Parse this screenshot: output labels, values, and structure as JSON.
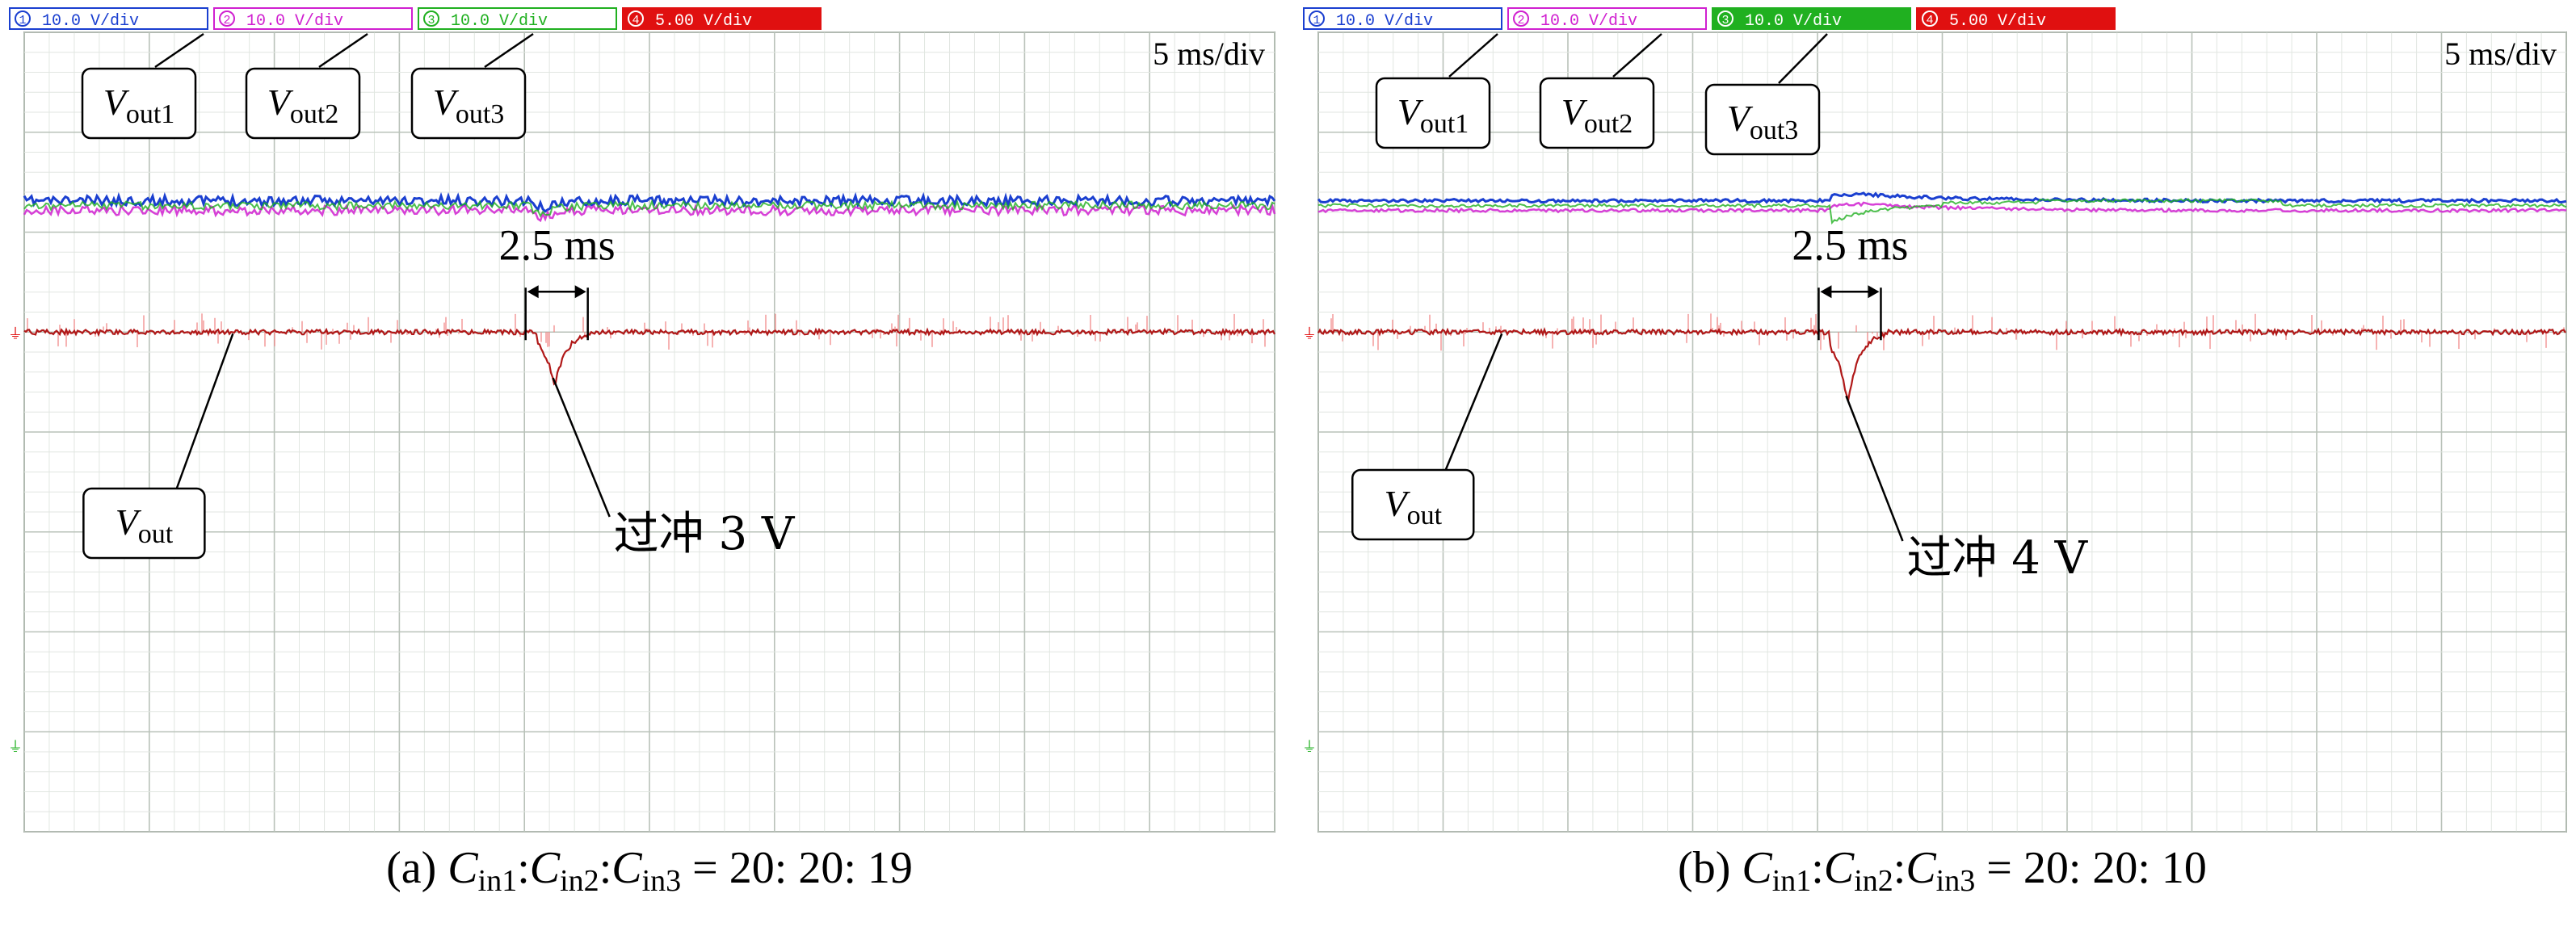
{
  "panels": [
    {
      "id": "a",
      "channels": [
        {
          "num": "1",
          "setting": "10.0 V/div",
          "color": "#1a3fd0"
        },
        {
          "num": "2",
          "setting": "10.0 V/div",
          "color": "#d020d0"
        },
        {
          "num": "3",
          "setting": "10.0 V/div",
          "color": "#20b020"
        },
        {
          "num": "4",
          "setting": "5.00 V/div",
          "color": "#e01010"
        }
      ],
      "timebase": "5 ms/div",
      "labels": {
        "vout1": {
          "main": "V",
          "sub": "out1"
        },
        "vout2": {
          "main": "V",
          "sub": "out2"
        },
        "vout3": {
          "main": "V",
          "sub": "out3"
        },
        "vout": {
          "main": "V",
          "sub": "out"
        }
      },
      "interval_label": "2.5 ms",
      "overshoot_label": "过冲 3 V",
      "caption": {
        "prefix": "(a) ",
        "c": "C",
        "s1": "in1",
        "s2": "in2",
        "s3": "in3",
        "ratio": " = 20: 20: 19"
      },
      "traces": {
        "top_level_div": 1.75,
        "vout_level_div": 3.0,
        "disturbance_time_div": 4.1,
        "overshoot_V": 3,
        "settle_ms": 2.5
      }
    },
    {
      "id": "b",
      "channels": [
        {
          "num": "1",
          "setting": "10.0 V/div",
          "color": "#1a3fd0"
        },
        {
          "num": "2",
          "setting": "10.0 V/div",
          "color": "#d020d0"
        },
        {
          "num": "3",
          "setting": "10.0 V/div",
          "color": "#20b020"
        },
        {
          "num": "4",
          "setting": "5.00 V/div",
          "color": "#e01010"
        }
      ],
      "timebase": "5 ms/div",
      "labels": {
        "vout1": {
          "main": "V",
          "sub": "out1"
        },
        "vout2": {
          "main": "V",
          "sub": "out2"
        },
        "vout3": {
          "main": "V",
          "sub": "out3"
        },
        "vout": {
          "main": "V",
          "sub": "out"
        }
      },
      "interval_label": "2.5 ms",
      "overshoot_label": "过冲 4 V",
      "caption": {
        "prefix": "(b) ",
        "c": "C",
        "s1": "in1",
        "s2": "in2",
        "s3": "in3",
        "ratio": " = 20: 20: 10"
      },
      "traces": {
        "top_level_div": 1.75,
        "vout_level_div": 3.0,
        "disturbance_time_div": 4.1,
        "overshoot_V": 4,
        "settle_ms": 2.5
      }
    }
  ],
  "chart_data": [
    {
      "type": "line",
      "title": "",
      "x_unit": "ms",
      "x_per_div": 5,
      "series": [
        {
          "name": "Vout1",
          "color": "#1a3fd0",
          "behaviour": "flat with small dip at load step"
        },
        {
          "name": "Vout2",
          "color": "#d020d0",
          "behaviour": "flat with small dip at load step"
        },
        {
          "name": "Vout3",
          "color": "#20b020",
          "behaviour": "flat with small dip at load step"
        },
        {
          "name": "Vout",
          "color": "#e01010",
          "behaviour": "noisy flat, undershoot 3 V, settles in 2.5 ms"
        }
      ],
      "annotations": [
        "2.5 ms",
        "过冲 3 V"
      ]
    },
    {
      "type": "line",
      "title": "",
      "x_unit": "ms",
      "x_per_div": 5,
      "series": [
        {
          "name": "Vout1",
          "color": "#1a3fd0",
          "behaviour": "flat with small rise after load step"
        },
        {
          "name": "Vout2",
          "color": "#d020d0",
          "behaviour": "flat with small rise after load step"
        },
        {
          "name": "Vout3",
          "color": "#20b020",
          "behaviour": "dip then slow recovery"
        },
        {
          "name": "Vout",
          "color": "#e01010",
          "behaviour": "noisy flat, undershoot 4 V, settles in 2.5 ms"
        }
      ],
      "annotations": [
        "2.5 ms",
        "过冲 4 V"
      ]
    }
  ]
}
